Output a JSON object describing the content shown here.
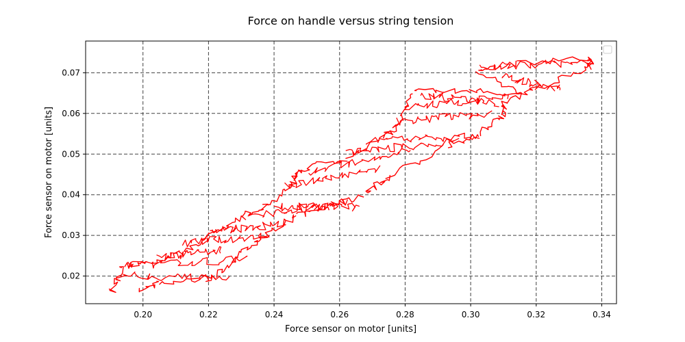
{
  "chart_data": {
    "type": "line",
    "title": "Force on handle versus string tension",
    "xlabel": "Force sensor on motor [units]",
    "ylabel": "Force sensor on motor [units]",
    "xlim": [
      0.1825,
      0.3445
    ],
    "ylim": [
      0.0132,
      0.0778
    ],
    "x_ticks": [
      "0.20",
      "0.22",
      "0.24",
      "0.26",
      "0.28",
      "0.30",
      "0.32",
      "0.34"
    ],
    "y_ticks": [
      "0.02",
      "0.03",
      "0.04",
      "0.05",
      "0.06",
      "0.07"
    ],
    "grid": true,
    "legend": "top-right",
    "series": [
      {
        "color": "#ff0000",
        "trace_outline": [
          [
            0.1905,
            0.0163
          ],
          [
            0.1935,
            0.0225
          ],
          [
            0.202,
            0.0233
          ],
          [
            0.2125,
            0.026
          ],
          [
            0.2205,
            0.0302
          ],
          [
            0.23,
            0.0345
          ],
          [
            0.2375,
            0.0372
          ],
          [
            0.2455,
            0.0425
          ],
          [
            0.248,
            0.0462
          ],
          [
            0.262,
            0.049
          ],
          [
            0.2725,
            0.0535
          ],
          [
            0.2775,
            0.057
          ],
          [
            0.2825,
            0.0655
          ],
          [
            0.3005,
            0.0655
          ],
          [
            0.3145,
            0.0648
          ],
          [
            0.3025,
            0.0705
          ],
          [
            0.3145,
            0.0722
          ],
          [
            0.3365,
            0.0735
          ],
          [
            0.3365,
            0.0712
          ],
          [
            0.3205,
            0.0662
          ],
          [
            0.3105,
            0.063
          ],
          [
            0.3095,
            0.0595
          ],
          [
            0.303,
            0.055
          ],
          [
            0.2925,
            0.052
          ],
          [
            0.275,
            0.0445
          ],
          [
            0.2675,
            0.04
          ],
          [
            0.257,
            0.037
          ],
          [
            0.247,
            0.035
          ],
          [
            0.237,
            0.03
          ],
          [
            0.2295,
            0.025
          ],
          [
            0.2225,
            0.02
          ],
          [
            0.205,
            0.018
          ],
          [
            0.198,
            0.0165
          ]
        ]
      }
    ]
  }
}
